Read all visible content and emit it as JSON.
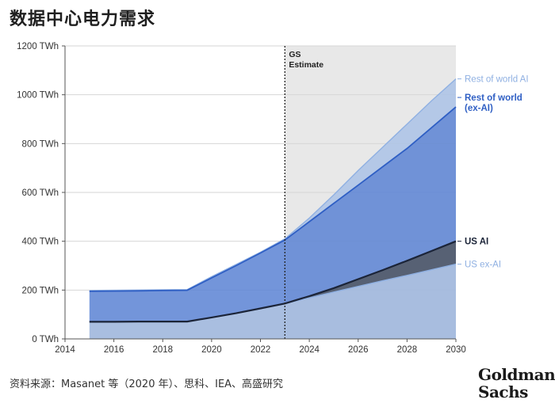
{
  "title": "数据中心电力需求",
  "source": "资料来源：Masanet 等（2020 年）、思科、IEA、高盛研究",
  "logo": {
    "line1": "Goldman",
    "line2": "Sachs"
  },
  "colors": {
    "rest_of_world_ai": "#aac2e6",
    "rest_of_world_ex_ai": "#5a83d4",
    "us_ai": "#4f5a6e",
    "us_ex_ai": "#a2b9dd",
    "us_ai_line": "#1b2438",
    "estimate_band": "#e8e8e8",
    "label_light": "#8fb0e2",
    "label_blue": "#2f5fc4",
    "label_dark": "#1b2438"
  },
  "chart_data": {
    "type": "area",
    "title": "数据中心电力需求",
    "estimate_label": [
      "GS",
      "Estimate"
    ],
    "estimate_start": 2023,
    "x": [
      2015,
      2016,
      2017,
      2018,
      2019,
      2020,
      2021,
      2022,
      2023,
      2024,
      2025,
      2026,
      2027,
      2028,
      2029,
      2030
    ],
    "x_ticks": [
      "2014",
      "2016",
      "2018",
      "2020",
      "2022",
      "2024",
      "2026",
      "2028",
      "2030"
    ],
    "y_ticks": [
      "0 TWh",
      "200 TWh",
      "400 TWh",
      "600 TWh",
      "800 TWh",
      "1000 TWh",
      "1200 TWh"
    ],
    "xlim": [
      2014,
      2030
    ],
    "ylim": [
      0,
      1200
    ],
    "series": [
      {
        "name": "US ex-AI",
        "values": [
          70,
          70,
          71,
          71,
          71,
          88,
          105,
          125,
          145,
          168,
          192,
          215,
          238,
          260,
          283,
          306
        ]
      },
      {
        "name": "US AI",
        "values": [
          70,
          70,
          71,
          71,
          71,
          88,
          105,
          125,
          145,
          175,
          208,
          245,
          282,
          320,
          360,
          400
        ]
      },
      {
        "name": "Rest of world\n(ex-AI)",
        "values": [
          195,
          196,
          197,
          198,
          199,
          250,
          300,
          352,
          405,
          480,
          555,
          630,
          705,
          780,
          865,
          950
        ]
      },
      {
        "name": "Rest of world AI",
        "values": [
          198,
          199,
          200,
          201,
          202,
          255,
          305,
          355,
          410,
          495,
          590,
          690,
          785,
          880,
          975,
          1065
        ]
      }
    ]
  }
}
